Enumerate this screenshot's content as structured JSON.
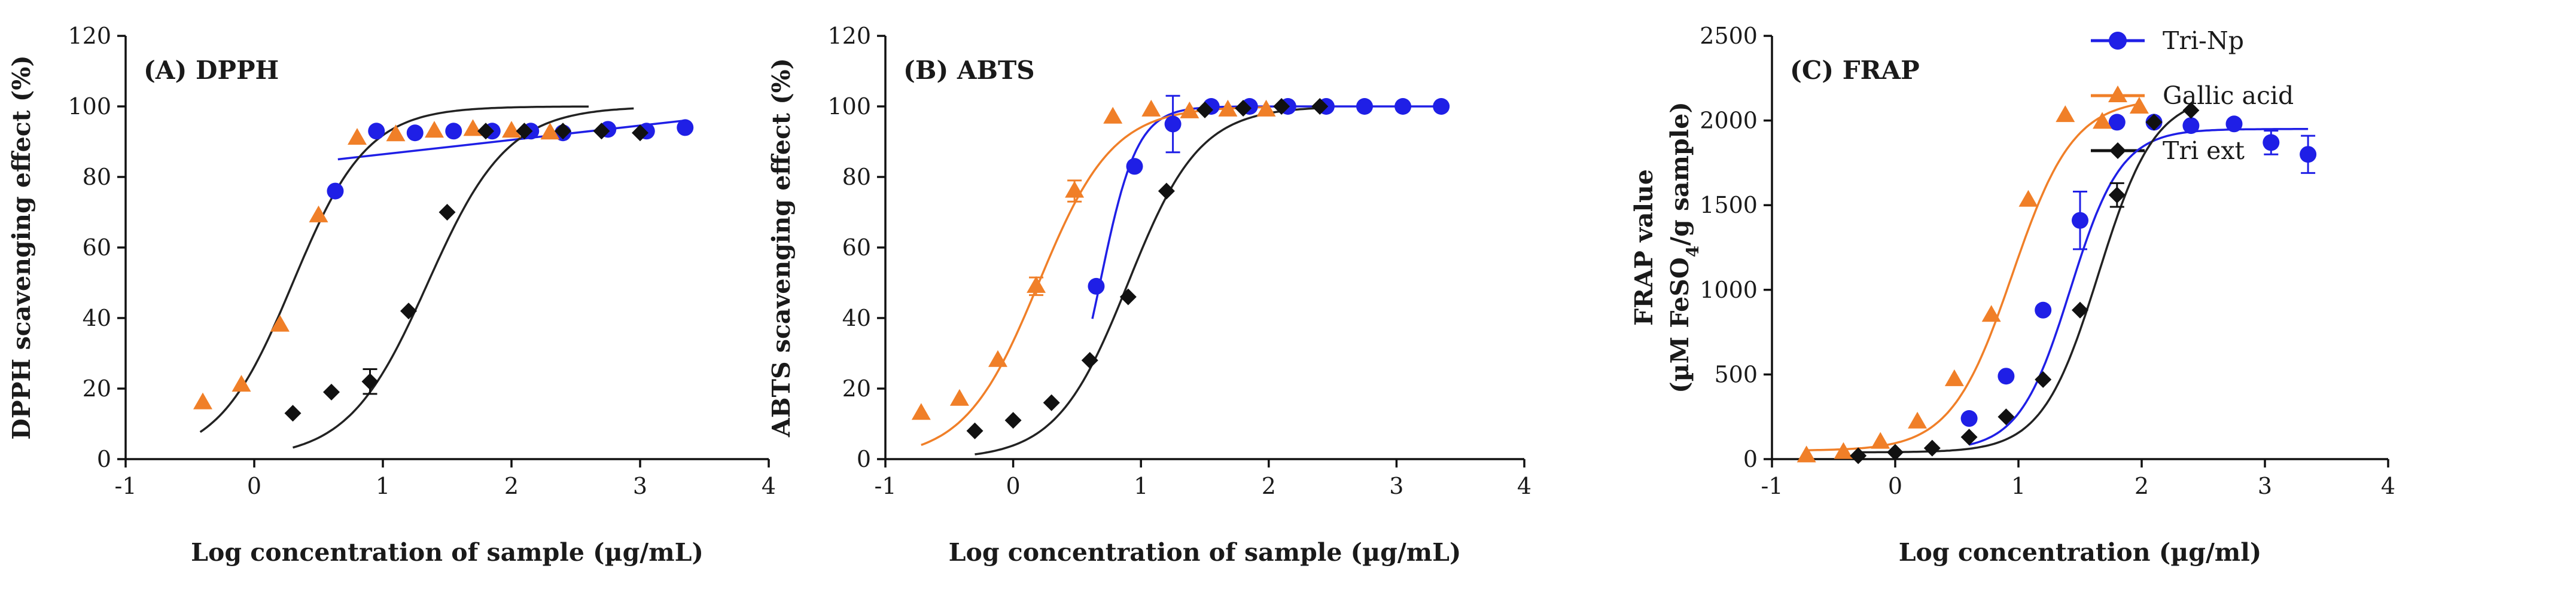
{
  "colors": {
    "tri_np": "#1f1fe6",
    "gallic": "#f07f28",
    "tri_ext": "#111111",
    "fit_black": "#222222"
  },
  "legend": {
    "items": [
      {
        "label": "Tri-Np",
        "color": "#1f1fe6",
        "marker": "circle"
      },
      {
        "label": "Gallic acid",
        "color": "#f07f28",
        "marker": "triangle"
      },
      {
        "label": "Tri ext",
        "color": "#111111",
        "marker": "diamond"
      }
    ]
  },
  "chart_data": [
    {
      "type": "scatter",
      "title": "(A) DPPH",
      "xlabel": "Log concentration of sample (µg/mL)",
      "ylabel": "DPPH scavenging effect (%)",
      "xlim": [
        -1,
        4
      ],
      "ylim": [
        0,
        120
      ],
      "xticks": [
        -1,
        0,
        1,
        2,
        3,
        4
      ],
      "yticks": [
        0,
        20,
        40,
        60,
        80,
        100,
        120
      ],
      "series": [
        {
          "name": "Tri-Np",
          "marker": "circle",
          "color": "#1f1fe6",
          "x": [
            0.63,
            0.95,
            1.25,
            1.55,
            1.85,
            2.15,
            2.4,
            2.75,
            3.05,
            3.35
          ],
          "y": [
            76,
            93,
            92.5,
            93,
            93,
            93,
            92.5,
            93.5,
            93,
            94
          ],
          "err": [
            0,
            0,
            0,
            0,
            0,
            0,
            0,
            0,
            0,
            0
          ],
          "fit": {
            "model": "linear",
            "x0": 0.65,
            "y0": 85,
            "x1": 3.35,
            "y1": 96,
            "color": "#1f1fe6"
          }
        },
        {
          "name": "Gallic acid",
          "marker": "triangle",
          "color": "#f07f28",
          "x": [
            -0.4,
            -0.1,
            0.2,
            0.5,
            0.8,
            1.1,
            1.4,
            1.7,
            2.0,
            2.3
          ],
          "y": [
            16,
            21,
            38,
            69,
            91,
            92,
            93,
            93.5,
            93,
            92.5
          ],
          "err": [
            0,
            0,
            0,
            0,
            0,
            0,
            0,
            0,
            0,
            0
          ],
          "fit": {
            "model": "logistic",
            "bottom": 0,
            "top": 100,
            "logEC50": 0.3,
            "hill": 1.5,
            "from": -0.42,
            "to": 2.6,
            "color": "#222222"
          }
        },
        {
          "name": "Tri ext",
          "marker": "diamond",
          "color": "#111111",
          "x": [
            0.3,
            0.6,
            0.9,
            1.2,
            1.5,
            1.8,
            2.1,
            2.4,
            2.7,
            3.0
          ],
          "y": [
            13,
            19,
            22,
            42,
            70,
            93,
            93,
            93,
            93,
            92.5
          ],
          "err": [
            0,
            0,
            3.5,
            0,
            0,
            0,
            0,
            0,
            0,
            0
          ],
          "fit": {
            "model": "logistic",
            "bottom": 0,
            "top": 100,
            "logEC50": 1.35,
            "hill": 1.4,
            "from": 0.3,
            "to": 2.95,
            "color": "#222222"
          }
        }
      ]
    },
    {
      "type": "scatter",
      "title": "(B) ABTS",
      "xlabel": "Log concentration of sample (µg/mL)",
      "ylabel": "ABTS scavenging effect (%)",
      "xlim": [
        -1,
        4
      ],
      "ylim": [
        0,
        120
      ],
      "xticks": [
        -1,
        0,
        1,
        2,
        3,
        4
      ],
      "yticks": [
        0,
        20,
        40,
        60,
        80,
        100,
        120
      ],
      "series": [
        {
          "name": "Tri-Np",
          "marker": "circle",
          "color": "#1f1fe6",
          "x": [
            0.65,
            0.95,
            1.25,
            1.55,
            1.85,
            2.15,
            2.45,
            2.75,
            3.05,
            3.35
          ],
          "y": [
            49,
            83,
            95,
            100,
            100,
            100,
            100,
            100,
            100,
            100
          ],
          "err": [
            0,
            0,
            8,
            0,
            0,
            0,
            0,
            0,
            0,
            0
          ],
          "fit": {
            "model": "logistic",
            "bottom": 0,
            "top": 100,
            "logEC50": 0.68,
            "hill": 3.0,
            "from": 0.62,
            "to": 3.35,
            "color": "#1f1fe6"
          }
        },
        {
          "name": "Gallic acid",
          "marker": "triangle",
          "color": "#f07f28",
          "x": [
            -0.72,
            -0.42,
            -0.12,
            0.18,
            0.48,
            0.78,
            1.08,
            1.38,
            1.68,
            1.98
          ],
          "y": [
            13,
            17,
            28,
            49,
            76,
            97,
            99,
            98.5,
            99,
            99
          ],
          "err": [
            0,
            0,
            0,
            2.5,
            3,
            0,
            0,
            0,
            0,
            0
          ],
          "fit": {
            "model": "logistic",
            "bottom": 0,
            "top": 100,
            "logEC50": 0.2,
            "hill": 1.5,
            "from": -0.72,
            "to": 1.98,
            "color": "#f07f28"
          }
        },
        {
          "name": "Tri ext",
          "marker": "diamond",
          "color": "#111111",
          "x": [
            -0.3,
            0.0,
            0.3,
            0.6,
            0.9,
            1.2,
            1.5,
            1.8,
            2.1,
            2.4
          ],
          "y": [
            8,
            11,
            16,
            28,
            46,
            76,
            99,
            99.5,
            100,
            100
          ],
          "err": [
            0,
            0,
            0,
            0,
            0,
            0,
            0,
            0,
            0,
            0
          ],
          "fit": {
            "model": "logistic",
            "bottom": 0,
            "top": 100,
            "logEC50": 0.9,
            "hill": 1.55,
            "from": -0.3,
            "to": 2.45,
            "color": "#222222"
          }
        }
      ]
    },
    {
      "type": "scatter",
      "title": "(C) FRAP",
      "xlabel": "Log concentration (µg/ml)",
      "ylabel": "FRAP value",
      "ylabel_line2_prefix": "(µM FeSO",
      "ylabel_line2_sub": "4",
      "ylabel_line2_suffix": "/g sample)",
      "xlim": [
        -1,
        4
      ],
      "ylim": [
        0,
        2500
      ],
      "xticks": [
        -1,
        0,
        1,
        2,
        3,
        4
      ],
      "yticks": [
        0,
        500,
        1000,
        1500,
        2000,
        2500
      ],
      "series": [
        {
          "name": "Tri-Np",
          "marker": "circle",
          "color": "#1f1fe6",
          "x": [
            0.6,
            0.9,
            1.2,
            1.5,
            1.8,
            2.1,
            2.4,
            2.75,
            3.05,
            3.35
          ],
          "y": [
            240,
            490,
            880,
            1410,
            1990,
            1990,
            1970,
            1980,
            1870,
            1800
          ],
          "err": [
            0,
            0,
            0,
            170,
            0,
            0,
            0,
            0,
            70,
            110
          ],
          "fit": {
            "model": "logistic",
            "bottom": 50,
            "top": 1950,
            "logEC50": 1.42,
            "hill": 2.1,
            "from": 0.6,
            "to": 3.35,
            "color": "#1f1fe6"
          }
        },
        {
          "name": "Gallic acid",
          "marker": "triangle",
          "color": "#f07f28",
          "x": [
            -0.72,
            -0.42,
            -0.12,
            0.18,
            0.48,
            0.78,
            1.08,
            1.38,
            1.68,
            1.98
          ],
          "y": [
            20,
            40,
            100,
            220,
            470,
            850,
            1530,
            2030,
            1990,
            2080
          ],
          "err": [
            0,
            0,
            0,
            0,
            0,
            0,
            0,
            0,
            0,
            0
          ],
          "fit": {
            "model": "logistic",
            "bottom": 50,
            "top": 2130,
            "logEC50": 0.95,
            "hill": 1.75,
            "from": -0.72,
            "to": 1.98,
            "color": "#f07f28"
          }
        },
        {
          "name": "Tri ext",
          "marker": "diamond",
          "color": "#111111",
          "x": [
            -0.3,
            0.0,
            0.3,
            0.6,
            0.9,
            1.2,
            1.5,
            1.8,
            2.1,
            2.4
          ],
          "y": [
            20,
            40,
            65,
            130,
            250,
            470,
            880,
            1560,
            1990,
            2060
          ],
          "err": [
            0,
            0,
            0,
            0,
            0,
            0,
            0,
            70,
            0,
            0
          ],
          "fit": {
            "model": "logistic",
            "bottom": 40,
            "top": 2150,
            "logEC50": 1.65,
            "hill": 1.9,
            "from": -0.3,
            "to": 2.4,
            "color": "#222222"
          }
        }
      ]
    }
  ]
}
